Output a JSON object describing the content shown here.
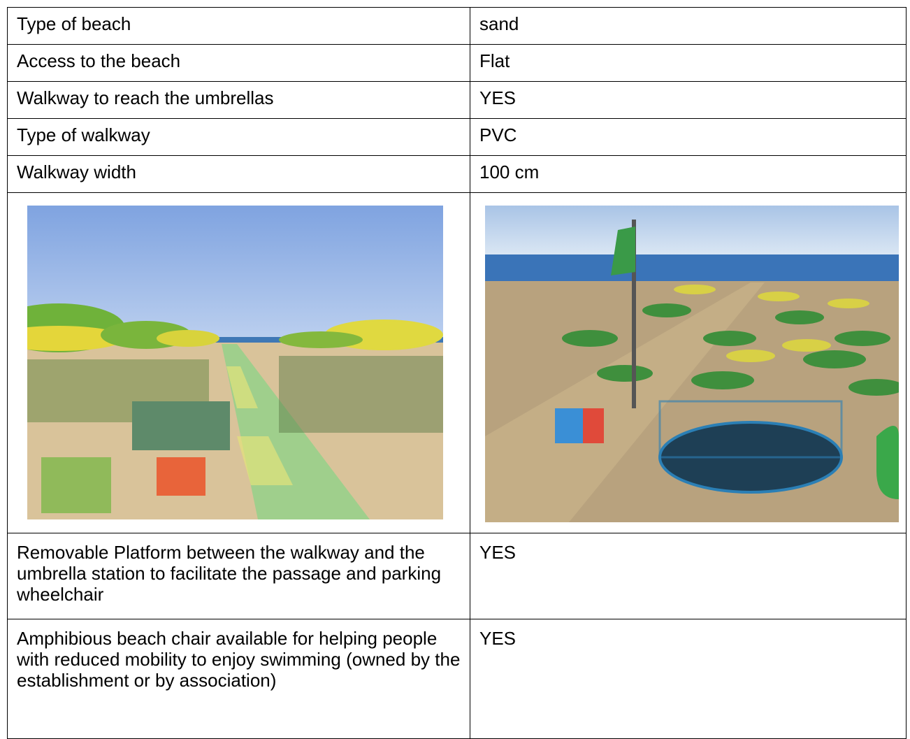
{
  "table": {
    "rows": [
      [
        "Type of beach",
        "sand"
      ],
      [
        "Access to the beach",
        "Flat"
      ],
      [
        "Walkway to reach the umbrellas",
        "YES"
      ],
      [
        "Type of walkway",
        "PVC"
      ],
      [
        "Walkway width",
        "100 cm"
      ],
      [
        "Removable Platform between the walkway and the umbrella station to facilitate the passage and parking wheelchair",
        "YES"
      ],
      [
        "Amphibious beach chair available for helping people with reduced mobility to enjoy swimming (owned by the establishment or by association)",
        "YES"
      ]
    ]
  }
}
